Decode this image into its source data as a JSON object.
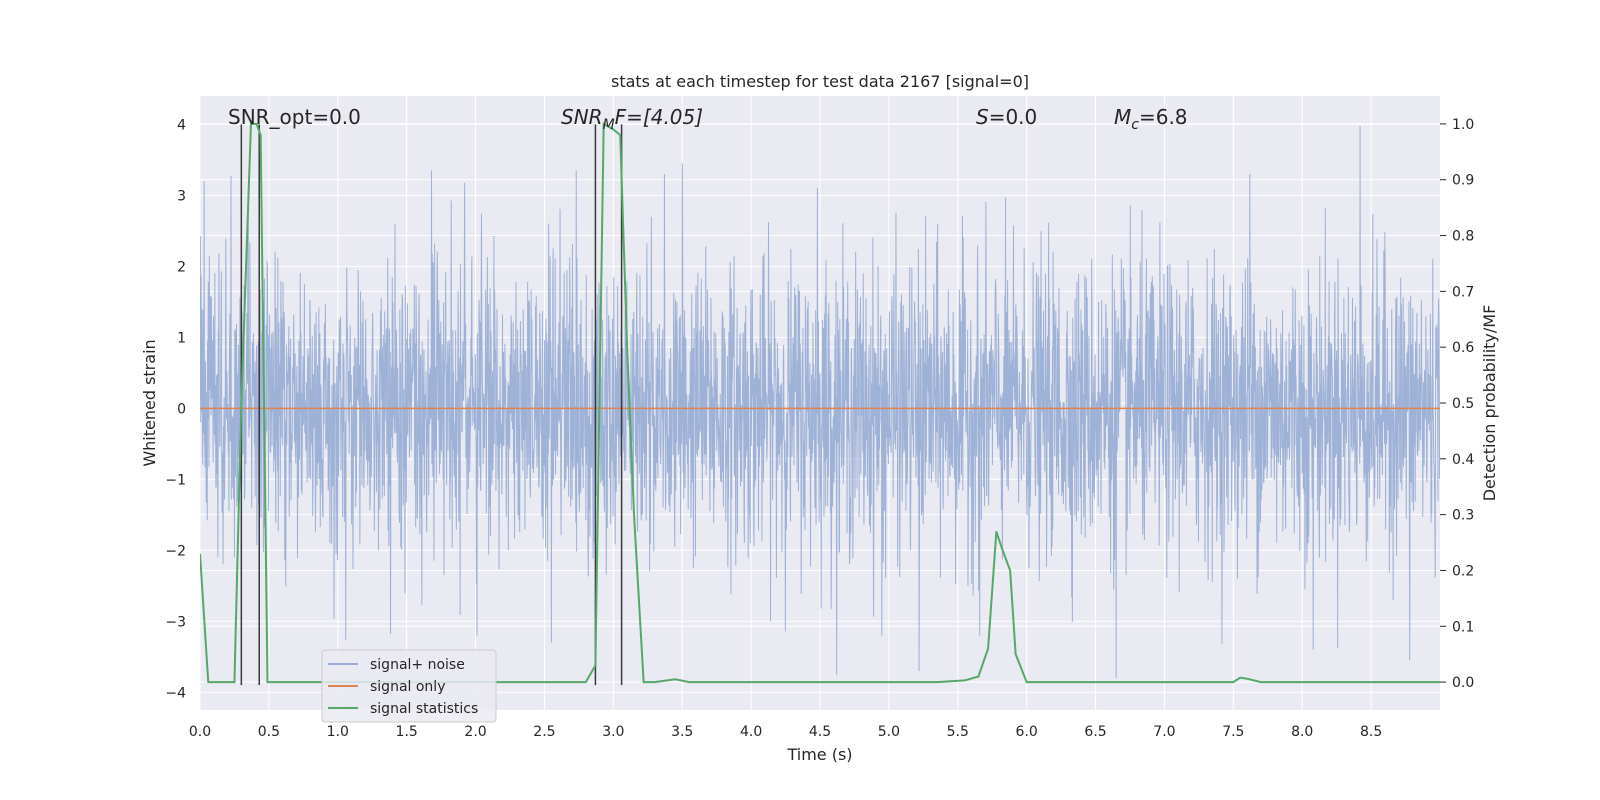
{
  "chart_data": {
    "type": "line",
    "title": "stats at each timestep for test data 2167 [signal=0]",
    "xlabel": "Time (s)",
    "ylabel": "Whitened strain",
    "y2label": "Detection probability/MF",
    "xlim": [
      0.0,
      9.0
    ],
    "ylim": [
      -4.25,
      4.4
    ],
    "y2lim": [
      -0.05,
      1.05
    ],
    "xticks": [
      "0.0",
      "0.5",
      "1.0",
      "1.5",
      "2.0",
      "2.5",
      "3.0",
      "3.5",
      "4.0",
      "4.5",
      "5.0",
      "5.5",
      "6.0",
      "6.5",
      "7.0",
      "7.5",
      "8.0",
      "8.5"
    ],
    "yticks": [
      "4",
      "3",
      "2",
      "1",
      "0",
      "−1",
      "−2",
      "−3",
      "−4"
    ],
    "y2ticks": [
      "1.0",
      "0.9",
      "0.8",
      "0.7",
      "0.6",
      "0.5",
      "0.4",
      "0.3",
      "0.2",
      "0.1",
      "0.0"
    ],
    "annotations": {
      "snr_opt": "SNR_opt=0.0",
      "snr_mf_main": "SNR",
      "snr_mf_sub": "M",
      "snr_mf_rest": "F=[4.05]",
      "s_var": "S",
      "s_rest": "=0.0",
      "mc_var": "M",
      "mc_sub": "c",
      "mc_rest": "=6.8"
    },
    "legend": {
      "position": "lower-left",
      "items": [
        "signal+ noise",
        "signal only",
        "signal statistics"
      ]
    },
    "colors": {
      "noise": "#9aaed4",
      "signal": "#dd8452",
      "stats": "#55a868",
      "vline": "#3a3a3a",
      "bg": "#eaeaf2",
      "grid": "#ffffff"
    },
    "series": [
      {
        "name": "signal+ noise",
        "description_only": false,
        "noise_sigma": 1.0,
        "y_range": [
          -3.8,
          4.0
        ]
      },
      {
        "name": "signal only",
        "values_constant": 0.0
      },
      {
        "name": "signal statistics",
        "axis": "right",
        "x": [
          0.0,
          0.06,
          0.1,
          0.2,
          0.25,
          0.3,
          0.37,
          0.41,
          0.44,
          0.49,
          0.6,
          0.8,
          1.0,
          1.5,
          2.0,
          2.5,
          2.6,
          2.8,
          2.87,
          2.93,
          3.0,
          3.05,
          3.1,
          3.15,
          3.22,
          3.3,
          3.45,
          3.55,
          4.0,
          4.5,
          5.0,
          5.35,
          5.55,
          5.65,
          5.72,
          5.78,
          5.82,
          5.88,
          5.92,
          6.0,
          6.5,
          7.0,
          7.5,
          7.55,
          7.6,
          7.7,
          8.0,
          8.5,
          9.0
        ],
        "values": [
          0.23,
          0.0,
          0.0,
          0.0,
          0.0,
          0.5,
          1.0,
          1.0,
          0.98,
          0.0,
          0.0,
          0.0,
          0.0,
          0.0,
          0.0,
          0.0,
          0.0,
          0.0,
          0.03,
          1.0,
          0.99,
          0.98,
          0.6,
          0.3,
          0.0,
          0.0,
          0.005,
          0.0,
          0.0,
          0.0,
          0.0,
          0.0,
          0.003,
          0.01,
          0.06,
          0.27,
          0.24,
          0.2,
          0.05,
          0.0,
          0.0,
          0.0,
          0.0,
          0.008,
          0.006,
          0.0,
          0.0,
          0.0,
          0.0
        ]
      }
    ],
    "vlines": [
      0.3,
      0.43,
      2.87,
      3.06
    ],
    "noise_spikes": [
      {
        "x": 0.03,
        "y": 3.2
      },
      {
        "x": 0.35,
        "y": 3.1
      },
      {
        "x": 2.01,
        "y": -3.2
      },
      {
        "x": 3.5,
        "y": 3.45
      },
      {
        "x": 2.55,
        "y": -3.3
      },
      {
        "x": 5.22,
        "y": -3.7
      },
      {
        "x": 6.65,
        "y": -3.8
      },
      {
        "x": 8.42,
        "y": 3.98
      },
      {
        "x": 8.08,
        "y": -3.4
      },
      {
        "x": 8.78,
        "y": -3.55
      },
      {
        "x": 5.66,
        "y": -3.2
      },
      {
        "x": 4.95,
        "y": -3.2
      },
      {
        "x": 1.68,
        "y": 3.35
      },
      {
        "x": 1.92,
        "y": 3.18
      },
      {
        "x": 7.62,
        "y": 3.3
      },
      {
        "x": 3.37,
        "y": 3.3
      },
      {
        "x": 4.48,
        "y": 3.1
      },
      {
        "x": 2.73,
        "y": 3.35
      }
    ]
  }
}
